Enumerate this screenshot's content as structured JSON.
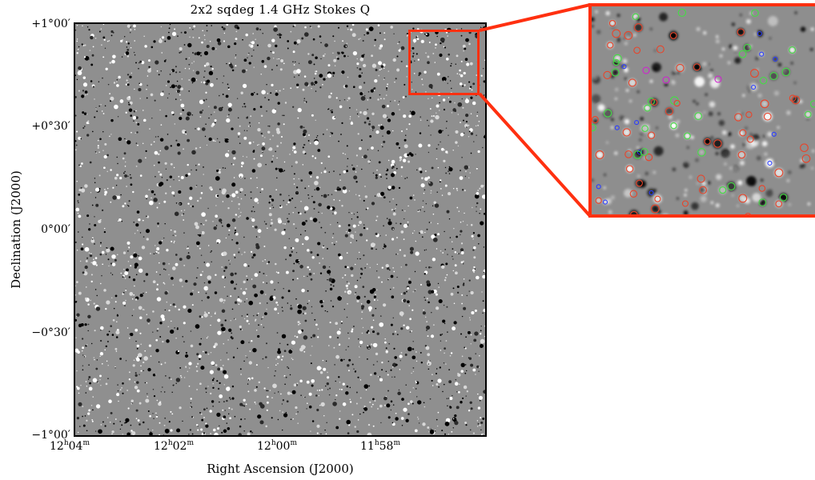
{
  "title": "2x2 sqdeg 1.4 GHz Stokes Q",
  "axes": {
    "x_label": "Right Ascension (J2000)",
    "y_label": "Declination (J2000)",
    "x_ticks": [
      {
        "h": "12",
        "m": "04"
      },
      {
        "h": "12",
        "m": "02"
      },
      {
        "h": "12",
        "m": "00"
      },
      {
        "h": "11",
        "m": "58"
      }
    ],
    "y_ticks": [
      "+1°00′",
      "+0°30′",
      "0°00′",
      "−0°30′",
      "−1°00′"
    ]
  },
  "colors": {
    "background": "#8f8f8f",
    "highlight": "#ff3010",
    "marker_red": "#e8442a",
    "marker_green": "#44dd44",
    "marker_blue": "#2a3dff",
    "marker_magenta": "#d020d0"
  }
}
